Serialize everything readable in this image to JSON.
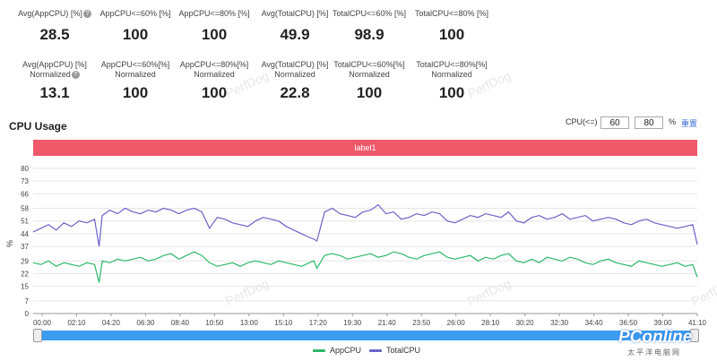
{
  "stats_row1": [
    {
      "label": "Avg(AppCPU) [%]",
      "value": "28.5",
      "help": true
    },
    {
      "label": "AppCPU<=60% [%]",
      "value": "100",
      "help": false
    },
    {
      "label": "AppCPU<=80% [%]",
      "value": "100",
      "help": false
    },
    {
      "label": "Avg(TotalCPU) [%]",
      "value": "49.9",
      "help": false
    },
    {
      "label": "TotalCPU<=60% [%]",
      "value": "98.9",
      "help": false
    },
    {
      "label": "TotalCPU<=80% [%]",
      "value": "100",
      "help": false
    }
  ],
  "stats_row2": [
    {
      "label": "Avg(AppCPU) [%]",
      "label2": "Normalized",
      "value": "13.1",
      "help": true
    },
    {
      "label": "AppCPU<=60%[%]",
      "label2": "Normalized",
      "value": "100",
      "help": false
    },
    {
      "label": "AppCPU<=80%[%]",
      "label2": "Normalized",
      "value": "100",
      "help": false
    },
    {
      "label": "Avg(TotalCPU) [%]",
      "label2": "Normalized",
      "value": "22.8",
      "help": false
    },
    {
      "label": "TotalCPU<=60%[%]",
      "label2": "Normalized",
      "value": "100",
      "help": false
    },
    {
      "label": "TotalCPU<=80%[%]",
      "label2": "Normalized",
      "value": "100",
      "help": false
    }
  ],
  "watermark": "PerfDog",
  "section": {
    "title": "CPU Usage"
  },
  "controls": {
    "label": "CPU(<=)",
    "value1": "60",
    "value2": "80",
    "unit": "%",
    "reset": "重置"
  },
  "label_bar": "label1",
  "legend": [
    {
      "name": "AppCPU",
      "color": "#2db86a"
    },
    {
      "name": "TotalCPU",
      "color": "#6a63c8"
    }
  ],
  "brand": {
    "logo": "PConline",
    "sub": "太平洋电脑网"
  },
  "chart_data": {
    "type": "line",
    "ylabel": "%",
    "yticks": [
      0,
      7,
      15,
      22,
      29,
      37,
      44,
      51,
      58,
      66,
      73,
      80
    ],
    "ylim": [
      0,
      80
    ],
    "xlim_minutes": [
      0,
      43.3
    ],
    "xticks": [
      "00:00",
      "02:10",
      "04:20",
      "06:30",
      "08:40",
      "10:50",
      "13:00",
      "15:10",
      "17:20",
      "19:30",
      "21:40",
      "23:50",
      "26:00",
      "28:10",
      "30:20",
      "32:30",
      "34:40",
      "36:50",
      "39:00",
      "41:10"
    ],
    "grid": true,
    "legend_position": "bottom",
    "series": [
      {
        "name": "AppCPU",
        "color": "#2db86a",
        "x_minutes": [
          0,
          0.5,
          1,
          1.5,
          2,
          2.5,
          3,
          3.5,
          4,
          4.3,
          4.5,
          5,
          5.5,
          6,
          6.5,
          7,
          7.5,
          8,
          8.5,
          9,
          9.5,
          10,
          10.5,
          11,
          11.5,
          12,
          12.5,
          13,
          13.5,
          14,
          14.5,
          15,
          15.5,
          16,
          16.5,
          17,
          17.5,
          18,
          18.3,
          18.5,
          19,
          19.5,
          20,
          20.5,
          21,
          21.5,
          22,
          22.5,
          23,
          23.5,
          24,
          24.5,
          25,
          25.5,
          26,
          26.5,
          27,
          27.5,
          28,
          28.5,
          29,
          29.5,
          30,
          30.5,
          31,
          31.5,
          32,
          32.5,
          33,
          33.5,
          34,
          34.5,
          35,
          35.5,
          36,
          36.5,
          37,
          37.5,
          38,
          38.5,
          39,
          39.5,
          40,
          40.5,
          41,
          41.5,
          42,
          42.5,
          43,
          43.3
        ],
        "values": [
          28,
          27,
          29,
          26,
          28,
          27,
          26,
          28,
          27,
          17,
          29,
          28,
          30,
          29,
          30,
          31,
          29,
          30,
          32,
          33,
          30,
          32,
          34,
          32,
          28,
          26,
          27,
          28,
          26,
          28,
          29,
          28,
          27,
          29,
          28,
          27,
          26,
          28,
          29,
          25,
          32,
          33,
          32,
          30,
          31,
          32,
          33,
          31,
          32,
          34,
          33,
          31,
          30,
          32,
          33,
          34,
          31,
          30,
          31,
          32,
          29,
          31,
          30,
          32,
          33,
          29,
          28,
          30,
          28,
          31,
          30,
          29,
          31,
          30,
          28,
          27,
          29,
          30,
          28,
          27,
          26,
          29,
          28,
          27,
          26,
          27,
          28,
          26,
          27,
          20
        ]
      },
      {
        "name": "TotalCPU",
        "color": "#6a63c8",
        "x_minutes": [
          0,
          0.5,
          1,
          1.5,
          2,
          2.5,
          3,
          3.5,
          4,
          4.3,
          4.5,
          5,
          5.5,
          6,
          6.5,
          7,
          7.5,
          8,
          8.5,
          9,
          9.5,
          10,
          10.5,
          11,
          11.5,
          12,
          12.5,
          13,
          13.5,
          14,
          14.5,
          15,
          15.5,
          16,
          16.5,
          17,
          17.5,
          18,
          18.3,
          18.5,
          19,
          19.5,
          20,
          20.5,
          21,
          21.5,
          22,
          22.5,
          23,
          23.5,
          24,
          24.5,
          25,
          25.5,
          26,
          26.5,
          27,
          27.5,
          28,
          28.5,
          29,
          29.5,
          30,
          30.5,
          31,
          31.5,
          32,
          32.5,
          33,
          33.5,
          34,
          34.5,
          35,
          35.5,
          36,
          36.5,
          37,
          37.5,
          38,
          38.5,
          39,
          39.5,
          40,
          40.5,
          41,
          41.5,
          42,
          42.5,
          43,
          43.3
        ],
        "values": [
          45,
          47,
          49,
          46,
          50,
          48,
          51,
          50,
          52,
          37,
          54,
          57,
          55,
          58,
          56,
          55,
          57,
          56,
          58,
          57,
          55,
          57,
          58,
          56,
          47,
          53,
          52,
          50,
          49,
          48,
          51,
          53,
          52,
          51,
          48,
          46,
          44,
          42,
          41,
          40,
          56,
          58,
          55,
          54,
          53,
          56,
          57,
          60,
          55,
          56,
          52,
          53,
          55,
          54,
          56,
          55,
          51,
          50,
          52,
          54,
          53,
          55,
          54,
          53,
          56,
          51,
          50,
          53,
          54,
          52,
          53,
          55,
          52,
          53,
          54,
          51,
          52,
          53,
          52,
          50,
          49,
          51,
          52,
          50,
          49,
          48,
          47,
          48,
          49,
          38
        ]
      }
    ]
  }
}
